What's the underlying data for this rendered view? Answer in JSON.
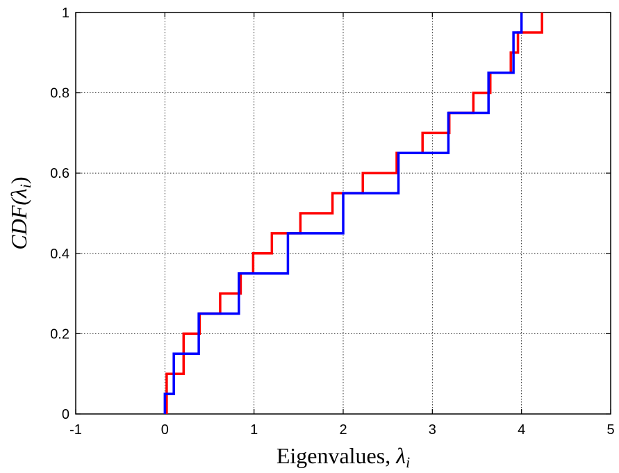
{
  "chart_data": {
    "type": "line",
    "step": true,
    "xlabel": "Eigenvalues, ",
    "xlabel_symbol": "λ",
    "xlabel_subscript": "i",
    "ylabel_func": "CDF(",
    "ylabel_symbol": "λ",
    "ylabel_subscript": "i",
    "ylabel_close": ")",
    "xlim": [
      -1,
      5
    ],
    "ylim": [
      0,
      1
    ],
    "xticks": [
      -1,
      0,
      1,
      2,
      3,
      4,
      5
    ],
    "xtick_labels": [
      "-1",
      "0",
      "1",
      "2",
      "3",
      "4",
      "5"
    ],
    "yticks": [
      0,
      0.2,
      0.4,
      0.6,
      0.8,
      1
    ],
    "ytick_labels": [
      "0",
      "0.2",
      "0.4",
      "0.6",
      "0.8",
      "1"
    ],
    "grid": true,
    "series": [
      {
        "color": "#ff0000",
        "x": [
          0.02,
          0.21,
          0.39,
          0.62,
          0.85,
          0.99,
          1.2,
          1.52,
          1.88,
          2.22,
          2.6,
          2.89,
          3.19,
          3.46,
          3.65,
          3.88,
          3.96,
          4.23
        ],
        "y": [
          0.1,
          0.2,
          0.25,
          0.3,
          0.35,
          0.4,
          0.45,
          0.5,
          0.55,
          0.6,
          0.65,
          0.7,
          0.75,
          0.8,
          0.85,
          0.9,
          0.95,
          1.0
        ]
      },
      {
        "color": "#0000ff",
        "x": [
          0.0,
          0.1,
          0.38,
          0.83,
          1.38,
          2.0,
          2.62,
          3.18,
          3.63,
          3.91,
          4.0
        ],
        "y": [
          0.05,
          0.15,
          0.25,
          0.35,
          0.45,
          0.55,
          0.65,
          0.75,
          0.85,
          0.95,
          1.0
        ]
      }
    ]
  }
}
